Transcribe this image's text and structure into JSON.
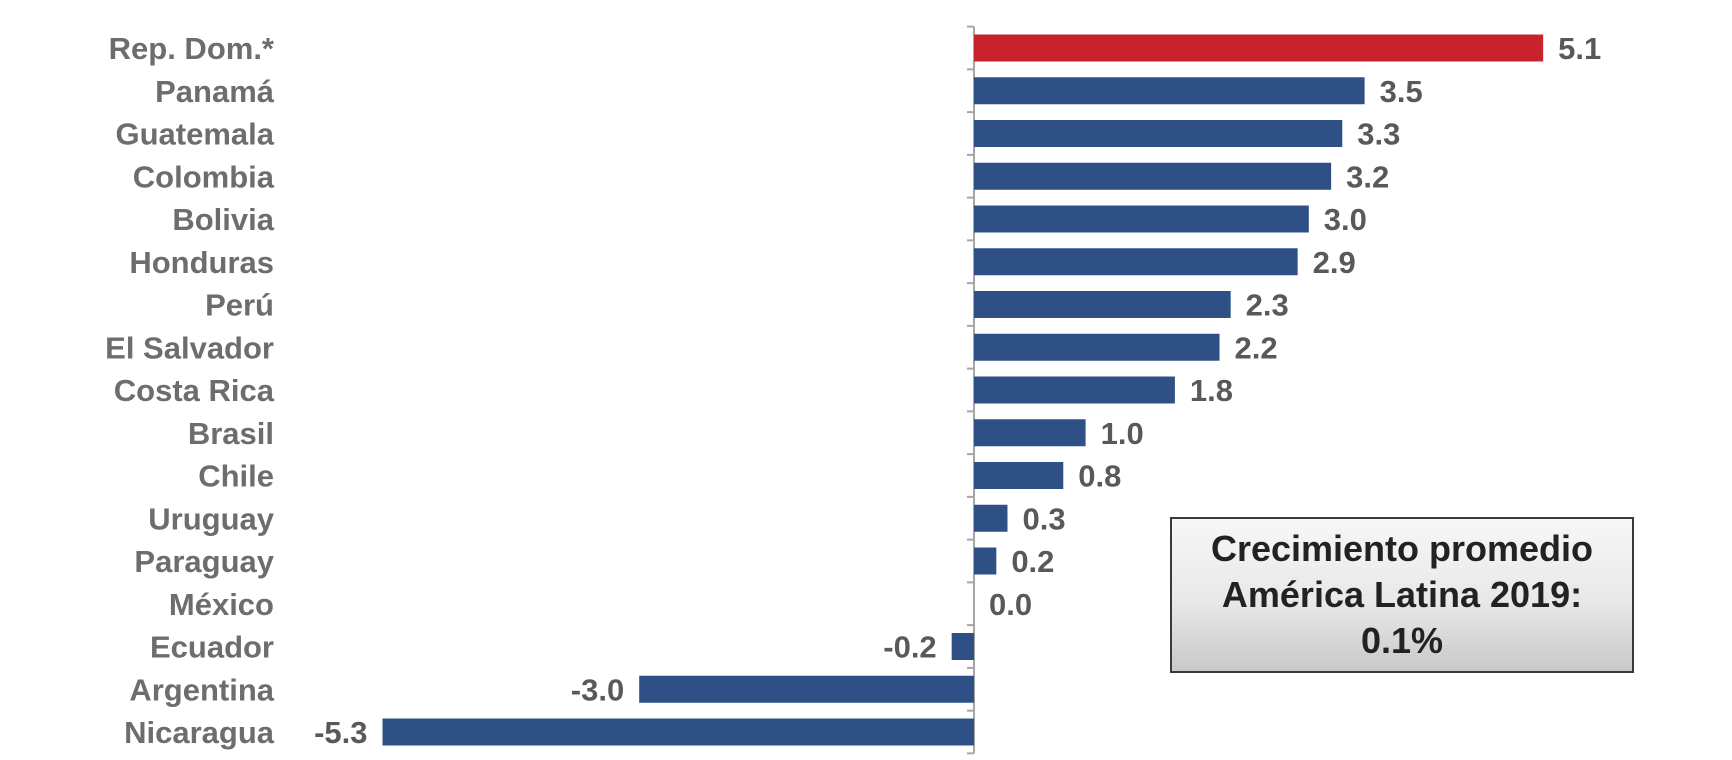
{
  "chart_data": {
    "type": "bar",
    "orientation": "horizontal",
    "categories": [
      "Rep. Dom.*",
      "Panamá",
      "Guatemala",
      "Colombia",
      "Bolivia",
      "Honduras",
      "Perú",
      "El Salvador",
      "Costa Rica",
      "Brasil",
      "Chile",
      "Uruguay",
      "Paraguay",
      "México",
      "Ecuador",
      "Argentina",
      "Nicaragua"
    ],
    "values": [
      5.1,
      3.5,
      3.3,
      3.2,
      3.0,
      2.9,
      2.3,
      2.2,
      1.8,
      1.0,
      0.8,
      0.3,
      0.2,
      0.0,
      -0.2,
      -3.0,
      -5.3
    ],
    "value_labels": [
      "5.1",
      "3.5",
      "3.3",
      "3.2",
      "3.0",
      "2.9",
      "2.3",
      "2.2",
      "1.8",
      "1.0",
      "0.8",
      "0.3",
      "0.2",
      "0.0",
      "-0.2",
      "-3.0",
      "-5.3"
    ],
    "highlight_category": "Rep. Dom.*",
    "xlim": [
      -5.3,
      5.1
    ],
    "grid": false,
    "legend": "none",
    "colors": {
      "bar": "#2e5085",
      "highlight": "#c8232c",
      "axis": "#a6a6a6"
    }
  },
  "annotation": {
    "line1": "Crecimiento promedio",
    "line2": "América Latina 2019:",
    "line3": "0.1%"
  }
}
